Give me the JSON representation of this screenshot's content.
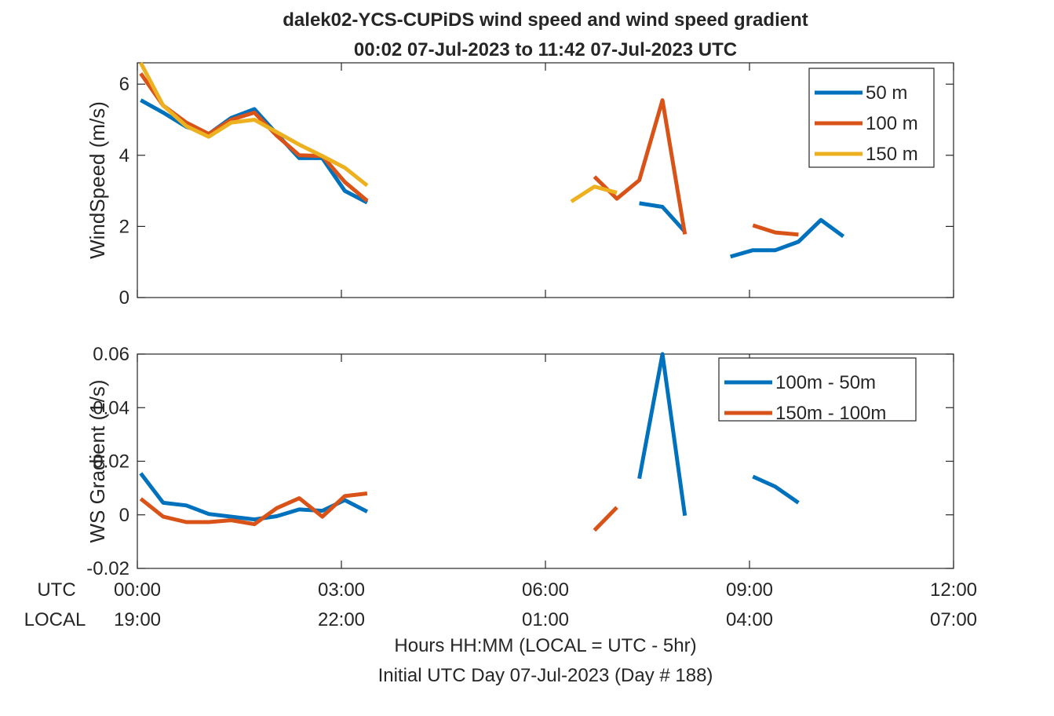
{
  "figure": {
    "title_line1": "dalek02-YCS-CUPiDS  wind speed and wind speed gradient",
    "title_line2": "00:02 07-Jul-2023 to 11:42 07-Jul-2023  UTC",
    "x_row_utc_label": "UTC",
    "x_row_local_label": "LOCAL",
    "xlabel_line1": "Hours HH:MM  (LOCAL = UTC - 5hr)",
    "xlabel_line2": "Initial UTC Day 07-Jul-2023 (Day # 188)",
    "utc_ticks": [
      "00:00",
      "03:00",
      "06:00",
      "09:00",
      "12:00"
    ],
    "local_ticks": [
      "19:00",
      "22:00",
      "01:00",
      "04:00",
      "07:00"
    ]
  },
  "colors": {
    "blue": "#0072BD",
    "orange": "#D95319",
    "yellow": "#EDB120",
    "axis": "#262626"
  },
  "chart_data": [
    {
      "type": "line",
      "ylabel": "WindSpeed (m/s)",
      "xlim": [
        0,
        12
      ],
      "ylim": [
        0,
        6.6
      ],
      "yticks": [
        0,
        2,
        4,
        6
      ],
      "ytick_labels": [
        "0",
        "2",
        "4",
        "6"
      ],
      "xticks": [
        0,
        3,
        6,
        9,
        12
      ],
      "grid": false,
      "legend_position": "top-right",
      "series": [
        {
          "name": "50 m",
          "color": "#0072BD",
          "segments": [
            [
              [
                0.05,
                5.55
              ],
              [
                0.38,
                5.2
              ],
              [
                0.72,
                4.8
              ],
              [
                1.05,
                4.6
              ],
              [
                1.38,
                5.05
              ],
              [
                1.72,
                5.3
              ],
              [
                2.05,
                4.6
              ],
              [
                2.38,
                3.92
              ],
              [
                2.72,
                3.92
              ],
              [
                3.05,
                3.0
              ],
              [
                3.38,
                2.67
              ]
            ],
            [
              [
                7.38,
                2.65
              ],
              [
                7.72,
                2.55
              ],
              [
                8.05,
                1.85
              ]
            ],
            [
              [
                8.72,
                1.15
              ],
              [
                9.05,
                1.33
              ],
              [
                9.38,
                1.33
              ],
              [
                9.72,
                1.57
              ],
              [
                10.05,
                2.18
              ],
              [
                10.38,
                1.72
              ]
            ]
          ]
        },
        {
          "name": "100 m",
          "color": "#D95319",
          "segments": [
            [
              [
                0.05,
                6.3
              ],
              [
                0.38,
                5.4
              ],
              [
                0.72,
                4.92
              ],
              [
                1.05,
                4.6
              ],
              [
                1.38,
                5.0
              ],
              [
                1.72,
                5.2
              ],
              [
                2.05,
                4.55
              ],
              [
                2.38,
                4.0
              ],
              [
                2.72,
                3.98
              ],
              [
                3.05,
                3.25
              ],
              [
                3.38,
                2.72
              ]
            ],
            [
              [
                6.72,
                3.4
              ],
              [
                7.05,
                2.78
              ],
              [
                7.38,
                3.3
              ],
              [
                7.72,
                5.55
              ],
              [
                8.05,
                1.78
              ]
            ],
            [
              [
                9.05,
                2.03
              ],
              [
                9.38,
                1.83
              ],
              [
                9.72,
                1.77
              ]
            ]
          ]
        },
        {
          "name": "150 m",
          "color": "#EDB120",
          "segments": [
            [
              [
                0.05,
                6.6
              ],
              [
                0.38,
                5.4
              ],
              [
                0.72,
                4.82
              ],
              [
                1.05,
                4.52
              ],
              [
                1.38,
                4.92
              ],
              [
                1.72,
                5.0
              ],
              [
                2.05,
                4.65
              ],
              [
                2.38,
                4.3
              ],
              [
                2.72,
                3.98
              ],
              [
                3.05,
                3.65
              ],
              [
                3.38,
                3.15
              ]
            ],
            [
              [
                6.38,
                2.7
              ],
              [
                6.72,
                3.12
              ],
              [
                7.05,
                2.95
              ]
            ]
          ]
        }
      ]
    },
    {
      "type": "line",
      "ylabel": "WS Gradient (1/s)",
      "xlim": [
        0,
        12
      ],
      "ylim": [
        -0.02,
        0.06
      ],
      "yticks": [
        -0.02,
        0,
        0.02,
        0.04,
        0.06
      ],
      "ytick_labels": [
        "-0.02",
        "0",
        "0.02",
        "0.04",
        "0.06"
      ],
      "xticks": [
        0,
        3,
        6,
        9,
        12
      ],
      "grid": false,
      "legend_position": "top-right",
      "series": [
        {
          "name": "100m - 50m",
          "color": "#0072BD",
          "segments": [
            [
              [
                0.05,
                0.0155
              ],
              [
                0.38,
                0.0045
              ],
              [
                0.72,
                0.0035
              ],
              [
                1.05,
                0.0003
              ],
              [
                1.38,
                -0.0007
              ],
              [
                1.72,
                -0.0017
              ],
              [
                2.05,
                -0.0005
              ],
              [
                2.38,
                0.002
              ],
              [
                2.72,
                0.0015
              ],
              [
                3.05,
                0.0055
              ],
              [
                3.38,
                0.0012
              ]
            ],
            [
              [
                7.38,
                0.0135
              ],
              [
                7.72,
                0.06
              ],
              [
                8.05,
                -0.0003
              ]
            ],
            [
              [
                9.05,
                0.0143
              ],
              [
                9.38,
                0.0105
              ],
              [
                9.72,
                0.0045
              ]
            ]
          ]
        },
        {
          "name": "150m - 100m",
          "color": "#D95319",
          "segments": [
            [
              [
                0.05,
                0.006
              ],
              [
                0.38,
                -0.0007
              ],
              [
                0.72,
                -0.0027
              ],
              [
                1.05,
                -0.0027
              ],
              [
                1.38,
                -0.002
              ],
              [
                1.72,
                -0.0035
              ],
              [
                2.05,
                0.0025
              ],
              [
                2.38,
                0.0062
              ],
              [
                2.72,
                -0.0007
              ],
              [
                3.05,
                0.007
              ],
              [
                3.38,
                0.008
              ]
            ],
            [
              [
                6.72,
                -0.0058
              ],
              [
                7.05,
                0.0028
              ]
            ]
          ]
        }
      ]
    }
  ]
}
